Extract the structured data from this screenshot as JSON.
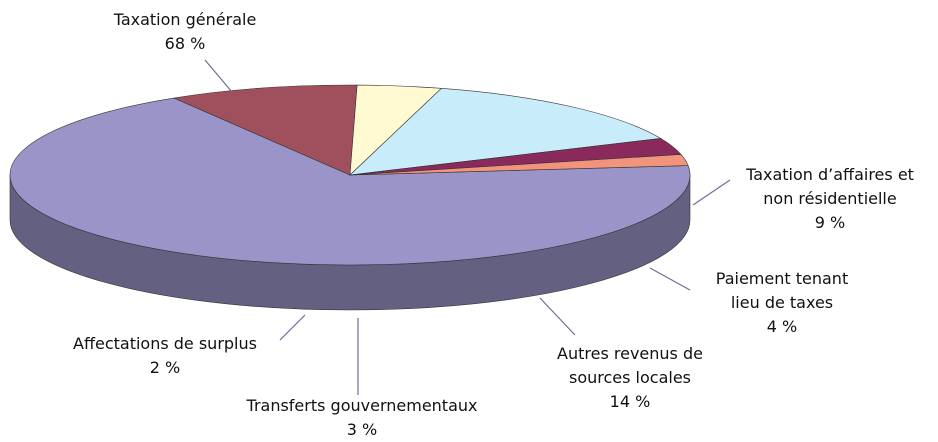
{
  "chart_data": {
    "type": "pie",
    "categories": [
      "Taxation générale",
      "Taxation d’affaires et non résidentielle",
      "Paiement tenant lieu de taxes",
      "Autres revenus de sources locales",
      "Transferts gouvernementaux",
      "Affectations de surplus"
    ],
    "values": [
      68,
      9,
      4,
      14,
      3,
      2
    ],
    "value_labels": [
      "68 %",
      "9 %",
      "4 %",
      "14 %",
      "3 %",
      "2 %"
    ],
    "colors": [
      "#9a94c8",
      "#a0505c",
      "#fffad2",
      "#c8ecfa",
      "#8a2a5c",
      "#f2937c"
    ]
  }
}
